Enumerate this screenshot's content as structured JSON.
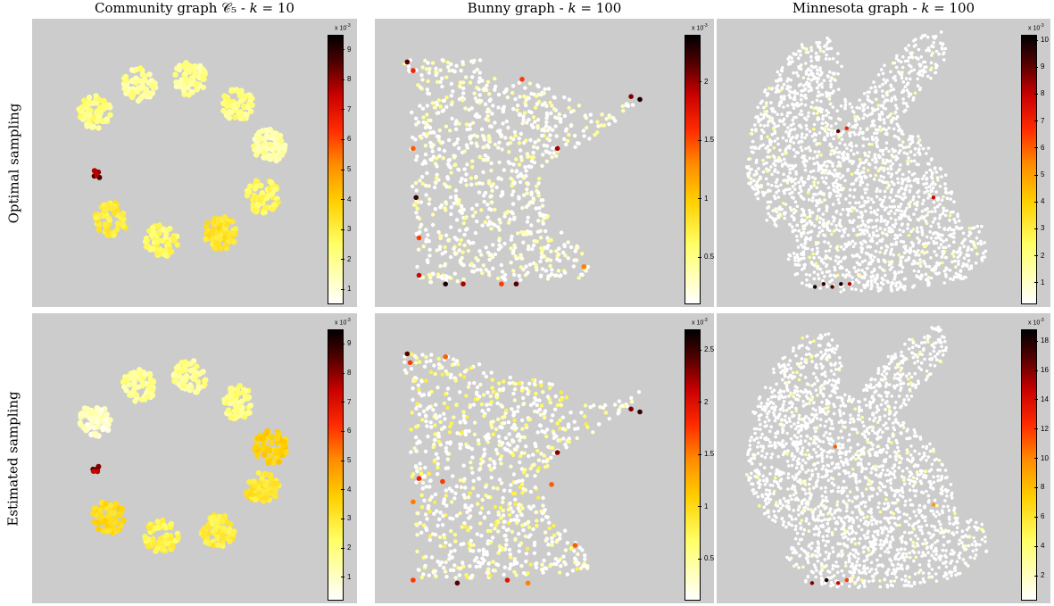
{
  "titles": {
    "col1": "Community graph 𝒞₅ - 𝑘 = 10",
    "col2": "Bunny graph - 𝑘 = 100",
    "col3": "Minnesota graph - 𝑘 = 100"
  },
  "row_labels": {
    "row1": "Optimal sampling",
    "row2": "Estimated sampling"
  },
  "colormap": [
    "#ffffff",
    "#ffff66",
    "#ffd000",
    "#ff8c00",
    "#ff2a00",
    "#c80000",
    "#500000",
    "#000000"
  ],
  "background_color": "#cccccc",
  "chart_data": [
    {
      "type": "scatter",
      "graph": "community",
      "sampling": "optimal",
      "colorbar": {
        "ticks": [
          "1",
          "2",
          "3",
          "4",
          "5",
          "6",
          "7",
          "8",
          "9"
        ],
        "exponent_base": "x 10",
        "exponent_power": "-3",
        "range": [
          0.5,
          9.5
        ]
      },
      "clusters": [
        {
          "x": 0.21,
          "y": 0.32,
          "level": 0.12
        },
        {
          "x": 0.37,
          "y": 0.22,
          "level": 0.1
        },
        {
          "x": 0.55,
          "y": 0.2,
          "level": 0.1
        },
        {
          "x": 0.72,
          "y": 0.29,
          "level": 0.12
        },
        {
          "x": 0.83,
          "y": 0.44,
          "level": 0.08
        },
        {
          "x": 0.81,
          "y": 0.62,
          "level": 0.16
        },
        {
          "x": 0.66,
          "y": 0.75,
          "level": 0.22
        },
        {
          "x": 0.45,
          "y": 0.78,
          "level": 0.15
        },
        {
          "x": 0.27,
          "y": 0.7,
          "level": 0.2
        }
      ],
      "hotspots": [
        {
          "x": 0.215,
          "y": 0.54,
          "level": 0.92
        }
      ]
    },
    {
      "type": "scatter",
      "graph": "minnesota",
      "sampling": "optimal",
      "colorbar": {
        "ticks": [
          "0.5",
          "1",
          "1.5",
          "2"
        ],
        "exponent_base": "x 10",
        "exponent_power": "-3",
        "range": [
          0.1,
          2.4
        ]
      },
      "hotspots": [
        {
          "x": 0.11,
          "y": 0.15,
          "level": 0.85
        },
        {
          "x": 0.13,
          "y": 0.18,
          "level": 0.6
        },
        {
          "x": 0.5,
          "y": 0.21,
          "level": 0.55
        },
        {
          "x": 0.87,
          "y": 0.27,
          "level": 0.8
        },
        {
          "x": 0.9,
          "y": 0.28,
          "level": 0.95
        },
        {
          "x": 0.62,
          "y": 0.45,
          "level": 0.75
        },
        {
          "x": 0.13,
          "y": 0.45,
          "level": 0.5
        },
        {
          "x": 0.14,
          "y": 0.62,
          "level": 0.9
        },
        {
          "x": 0.15,
          "y": 0.76,
          "level": 0.55
        },
        {
          "x": 0.15,
          "y": 0.89,
          "level": 0.7
        },
        {
          "x": 0.24,
          "y": 0.92,
          "level": 0.95
        },
        {
          "x": 0.3,
          "y": 0.92,
          "level": 0.75
        },
        {
          "x": 0.43,
          "y": 0.92,
          "level": 0.55
        },
        {
          "x": 0.48,
          "y": 0.92,
          "level": 0.85
        },
        {
          "x": 0.71,
          "y": 0.86,
          "level": 0.45
        }
      ]
    },
    {
      "type": "scatter",
      "graph": "bunny",
      "sampling": "optimal",
      "colorbar": {
        "ticks": [
          "1",
          "2",
          "3",
          "4",
          "5",
          "6",
          "7",
          "8",
          "9",
          "10"
        ],
        "exponent_base": "x 10",
        "exponent_power": "-3",
        "range": [
          0.2,
          10.2
        ]
      },
      "hotspots": [
        {
          "x": 0.42,
          "y": 0.39,
          "level": 0.85
        },
        {
          "x": 0.45,
          "y": 0.38,
          "level": 0.6
        },
        {
          "x": 0.75,
          "y": 0.62,
          "level": 0.7
        },
        {
          "x": 0.34,
          "y": 0.93,
          "level": 0.95
        },
        {
          "x": 0.37,
          "y": 0.92,
          "level": 0.9
        },
        {
          "x": 0.4,
          "y": 0.93,
          "level": 0.85
        },
        {
          "x": 0.43,
          "y": 0.92,
          "level": 0.95
        },
        {
          "x": 0.46,
          "y": 0.92,
          "level": 0.75
        }
      ]
    },
    {
      "type": "scatter",
      "graph": "community",
      "sampling": "estimated",
      "colorbar": {
        "ticks": [
          "1",
          "2",
          "3",
          "4",
          "5",
          "6",
          "7",
          "8",
          "9"
        ],
        "exponent_base": "x 10",
        "exponent_power": "-3",
        "range": [
          0.2,
          9.5
        ]
      },
      "clusters": [
        {
          "x": 0.21,
          "y": 0.37,
          "level": 0.05
        },
        {
          "x": 0.37,
          "y": 0.24,
          "level": 0.1
        },
        {
          "x": 0.55,
          "y": 0.21,
          "level": 0.1
        },
        {
          "x": 0.72,
          "y": 0.3,
          "level": 0.12
        },
        {
          "x": 0.84,
          "y": 0.46,
          "level": 0.28
        },
        {
          "x": 0.81,
          "y": 0.61,
          "level": 0.22
        },
        {
          "x": 0.65,
          "y": 0.76,
          "level": 0.2
        },
        {
          "x": 0.45,
          "y": 0.78,
          "level": 0.18
        },
        {
          "x": 0.26,
          "y": 0.71,
          "level": 0.25
        }
      ],
      "hotspots": [
        {
          "x": 0.215,
          "y": 0.54,
          "level": 0.9
        }
      ]
    },
    {
      "type": "scatter",
      "graph": "minnesota",
      "sampling": "estimated",
      "colorbar": {
        "ticks": [
          "0.5",
          "1",
          "1.5",
          "2",
          "2.5"
        ],
        "exponent_base": "x 10",
        "exponent_power": "-3",
        "range": [
          0.1,
          2.7
        ]
      },
      "hotspots": [
        {
          "x": 0.11,
          "y": 0.14,
          "level": 0.85
        },
        {
          "x": 0.12,
          "y": 0.17,
          "level": 0.55
        },
        {
          "x": 0.24,
          "y": 0.15,
          "level": 0.5
        },
        {
          "x": 0.87,
          "y": 0.33,
          "level": 0.8
        },
        {
          "x": 0.9,
          "y": 0.34,
          "level": 0.9
        },
        {
          "x": 0.62,
          "y": 0.48,
          "level": 0.8
        },
        {
          "x": 0.15,
          "y": 0.57,
          "level": 0.6
        },
        {
          "x": 0.13,
          "y": 0.65,
          "level": 0.45
        },
        {
          "x": 0.23,
          "y": 0.58,
          "level": 0.55
        },
        {
          "x": 0.6,
          "y": 0.59,
          "level": 0.5
        },
        {
          "x": 0.13,
          "y": 0.92,
          "level": 0.55
        },
        {
          "x": 0.28,
          "y": 0.93,
          "level": 0.85
        },
        {
          "x": 0.45,
          "y": 0.92,
          "level": 0.65
        },
        {
          "x": 0.52,
          "y": 0.93,
          "level": 0.45
        },
        {
          "x": 0.68,
          "y": 0.8,
          "level": 0.5
        }
      ]
    },
    {
      "type": "scatter",
      "graph": "bunny",
      "sampling": "estimated",
      "colorbar": {
        "ticks": [
          "2",
          "4",
          "6",
          "8",
          "10",
          "12",
          "14",
          "16",
          "18"
        ],
        "exponent_base": "x 10",
        "exponent_power": "-3",
        "range": [
          0.3,
          18.8
        ]
      },
      "hotspots": [
        {
          "x": 0.41,
          "y": 0.46,
          "level": 0.5
        },
        {
          "x": 0.75,
          "y": 0.66,
          "level": 0.4
        },
        {
          "x": 0.33,
          "y": 0.93,
          "level": 0.8
        },
        {
          "x": 0.38,
          "y": 0.92,
          "level": 0.95
        },
        {
          "x": 0.42,
          "y": 0.93,
          "level": 0.7
        },
        {
          "x": 0.45,
          "y": 0.92,
          "level": 0.55
        }
      ]
    }
  ]
}
